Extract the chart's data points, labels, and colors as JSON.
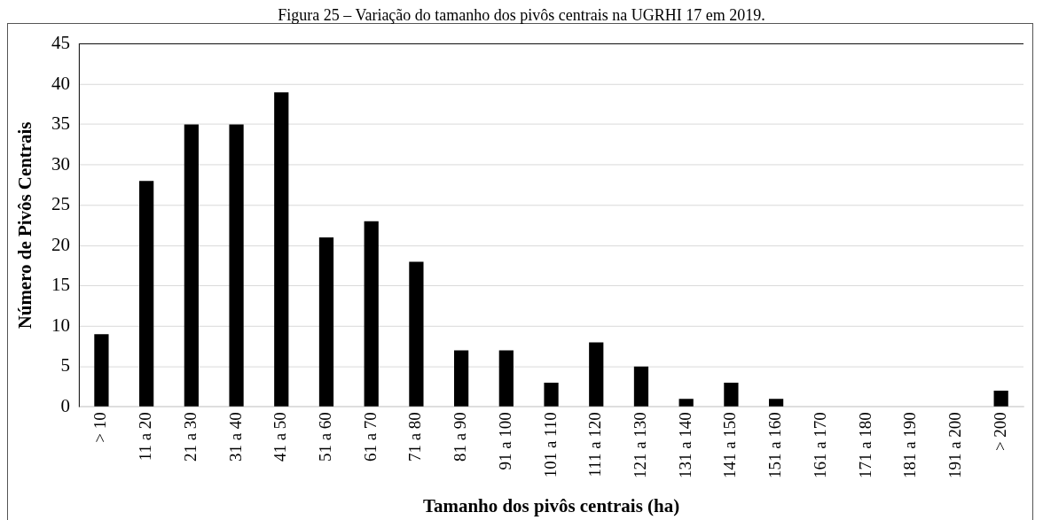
{
  "chart_data": {
    "type": "bar",
    "title": "Figura 25 – Variação do tamanho dos pivôs centrais na UGRHI 17 em 2019.",
    "xlabel": "Tamanho dos pivôs centrais (ha)",
    "ylabel": "Número de Pivôs Centrais",
    "categories": [
      "> 10",
      "11 a 20",
      "21 a 30",
      "31 a 40",
      "41 a 50",
      "51 a 60",
      "61 a 70",
      "71 a 80",
      "81 a 90",
      "91 a 100",
      "101 a 110",
      "111 a 120",
      "121 a 130",
      "131 a 140",
      "141 a 150",
      "151 a 160",
      "161 a 170",
      "171 a 180",
      "181 a 190",
      "191 a 200",
      "> 200"
    ],
    "values": [
      9,
      28,
      35,
      35,
      39,
      21,
      23,
      18,
      7,
      7,
      3,
      8,
      5,
      1,
      3,
      1,
      0,
      0,
      0,
      0,
      2
    ],
    "color": "#000000",
    "ylim": [
      0,
      45
    ],
    "yticks": [
      0,
      5,
      10,
      15,
      20,
      25,
      30,
      35,
      40,
      45
    ],
    "grid": "y"
  }
}
